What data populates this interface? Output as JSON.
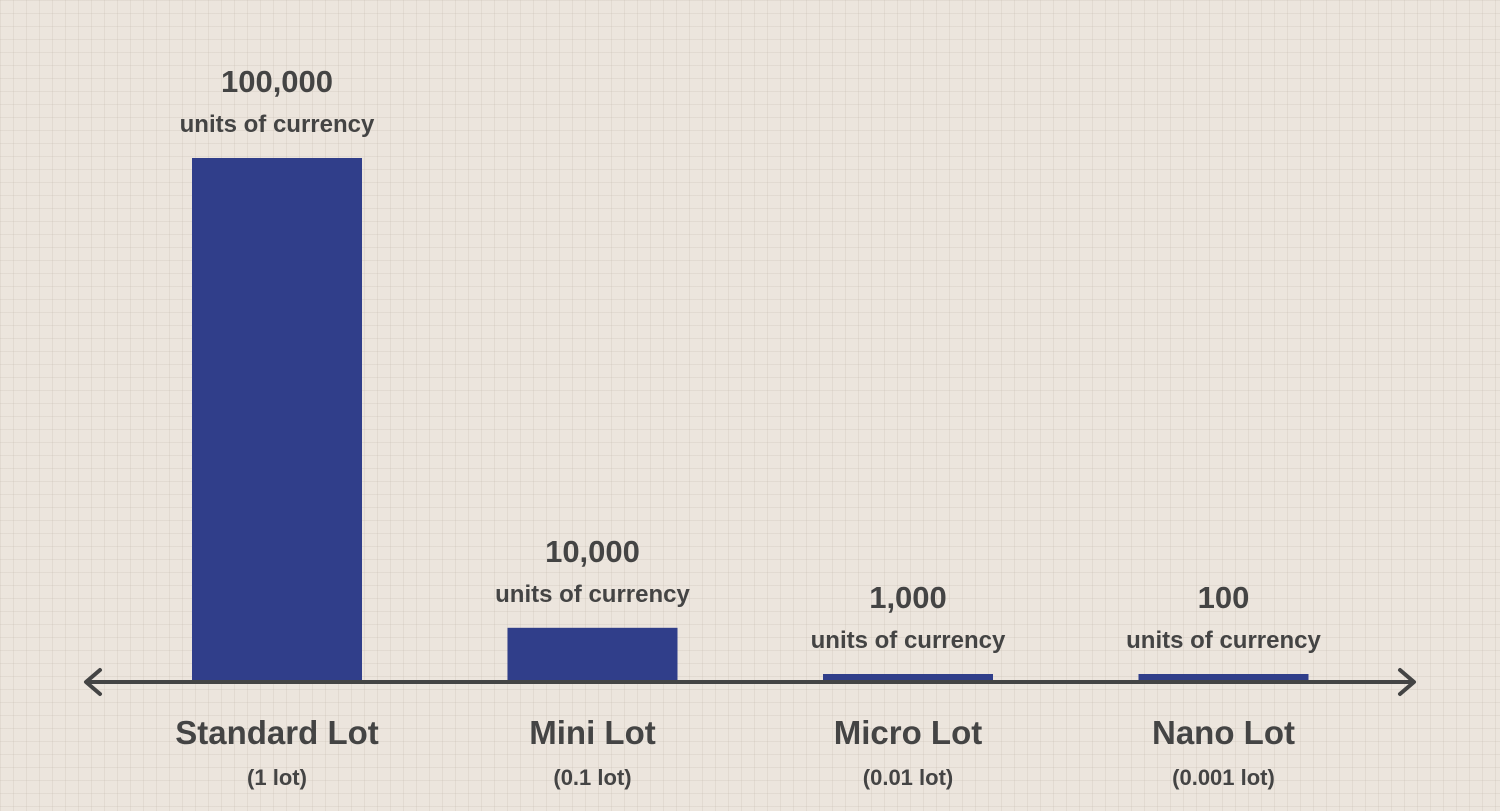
{
  "colors": {
    "bar": "#303e8a",
    "text": "#444444",
    "axis": "#444444"
  },
  "chart_data": {
    "type": "bar",
    "categories": [
      "Standard Lot",
      "Mini Lot",
      "Micro Lot",
      "Nano Lot"
    ],
    "category_sublabels": [
      "(1 lot)",
      "(0.1 lot)",
      "(0.01 lot)",
      "(0.001 lot)"
    ],
    "values": [
      100000,
      10000,
      1000,
      100
    ],
    "value_labels": [
      "100,000",
      "10,000",
      "1,000",
      "100"
    ],
    "unit_label": "units of currency",
    "x_axis": "arrow-both-ends",
    "grid": false,
    "legend": "none"
  }
}
